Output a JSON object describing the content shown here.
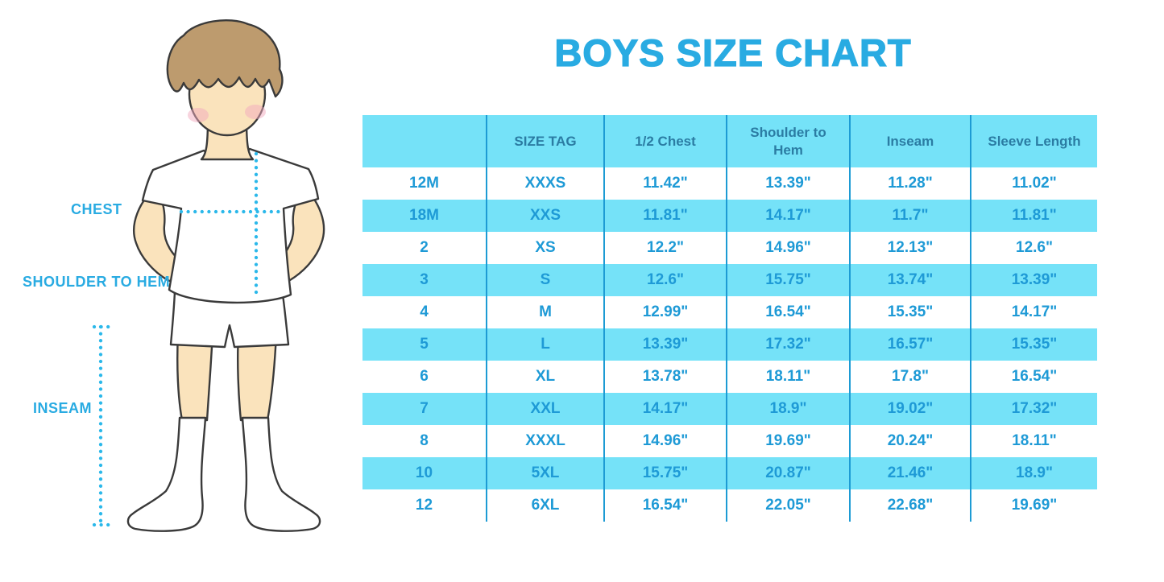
{
  "title": "BOYS SIZE CHART",
  "colors": {
    "accent": "#29ABE2",
    "header-bg": "#75E2F8",
    "header-text": "#2B7CA3",
    "row-alt-bg": "#75E2F8",
    "row-text": "#1E9AD6",
    "divider": "#1D9BD4",
    "dotted": "#2BB8EA",
    "skin": "#FAE3BC",
    "hair": "#BD9B6E",
    "outline": "#3A3A3A"
  },
  "figure": {
    "chest_label": "CHEST",
    "shoulder_to_hem_label": "SHOULDER TO HEM",
    "inseam_label": "INSEAM"
  },
  "chart_data": {
    "type": "table",
    "title": "BOYS SIZE CHART",
    "columns": [
      "",
      "SIZE TAG",
      "1/2 Chest",
      "Shoulder to Hem",
      "Inseam",
      "Sleeve Length"
    ],
    "rows": [
      [
        "12M",
        "XXXS",
        "11.42\"",
        "13.39\"",
        "11.28\"",
        "11.02\""
      ],
      [
        "18M",
        "XXS",
        "11.81\"",
        "14.17\"",
        "11.7\"",
        "11.81\""
      ],
      [
        "2",
        "XS",
        "12.2\"",
        "14.96\"",
        "12.13\"",
        "12.6\""
      ],
      [
        "3",
        "S",
        "12.6\"",
        "15.75\"",
        "13.74\"",
        "13.39\""
      ],
      [
        "4",
        "M",
        "12.99\"",
        "16.54\"",
        "15.35\"",
        "14.17\""
      ],
      [
        "5",
        "L",
        "13.39\"",
        "17.32\"",
        "16.57\"",
        "15.35\""
      ],
      [
        "6",
        "XL",
        "13.78\"",
        "18.11\"",
        "17.8\"",
        "16.54\""
      ],
      [
        "7",
        "XXL",
        "14.17\"",
        "18.9\"",
        "19.02\"",
        "17.32\""
      ],
      [
        "8",
        "XXXL",
        "14.96\"",
        "19.69\"",
        "20.24\"",
        "18.11\""
      ],
      [
        "10",
        "5XL",
        "15.75\"",
        "20.87\"",
        "21.46\"",
        "18.9\""
      ],
      [
        "12",
        "6XL",
        "16.54\"",
        "22.05\"",
        "22.68\"",
        "19.69\""
      ]
    ]
  }
}
